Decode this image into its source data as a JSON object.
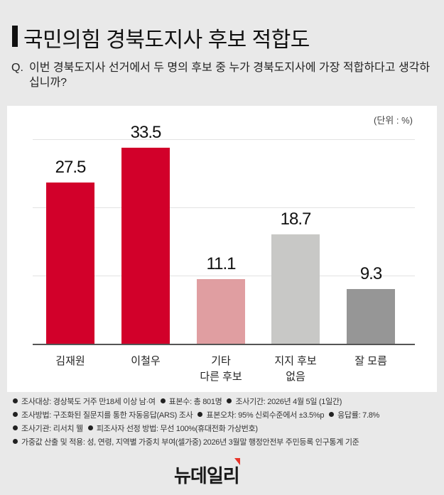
{
  "header": {
    "title": "국민의힘 경북도지사 후보 적합도",
    "question_prefix": "Q.",
    "question": "이번 경북도지사 선거에서 두 명의 후보 중 누가 경북도지사에 가장 적합하다고 생각하십니까?"
  },
  "chart": {
    "unit_label": "(단위 : %)"
  },
  "chart_data": {
    "type": "bar",
    "title": "국민의힘 경북도지사 후보 적합도",
    "xlabel": "",
    "ylabel": "%",
    "categories": [
      "김재원",
      "이철우",
      "기타 다른 후보",
      "지지 후보 없음",
      "잘 모름"
    ],
    "values": [
      27.5,
      33.5,
      11.1,
      18.7,
      9.3
    ],
    "colors": [
      "#d2002a",
      "#d2002a",
      "#e09ea1",
      "#c8c8c6",
      "#969696"
    ],
    "ylim": [
      0,
      35
    ],
    "grid": true,
    "legend": "none",
    "unit": "%"
  },
  "bars": [
    {
      "label": "김재원",
      "value": "27.5"
    },
    {
      "label": "이철우",
      "value": "33.5"
    },
    {
      "label": "기타\n다른 후보",
      "value": "11.1"
    },
    {
      "label": "지지 후보\n없음",
      "value": "18.7"
    },
    {
      "label": "잘 모름",
      "value": "9.3"
    }
  ],
  "notes": [
    [
      "조사대상: 경상북도 거주 만18세 이상 남·여",
      "표본수: 총 801명",
      "조사기간: 2026년 4월 5일 (1일간)"
    ],
    [
      "조사방법: 구조화된 질문지를 통한 자동응답(ARS) 조사",
      "표본오차: 95% 신뢰수준에서 ±3.5%p",
      "응답률: 7.8%"
    ],
    [
      "조사기관: 리서치 웰",
      "피조사자 선정 방법: 무선 100%(휴대전화 가상번호)"
    ],
    [
      "가중값 산출 및 적용: 성, 연령, 지역별 가중치 부여(셀가중)  2026년 3월말 행정안전부 주민등록 인구통계 기준"
    ]
  ],
  "footer": {
    "logo": "뉴데일리"
  }
}
